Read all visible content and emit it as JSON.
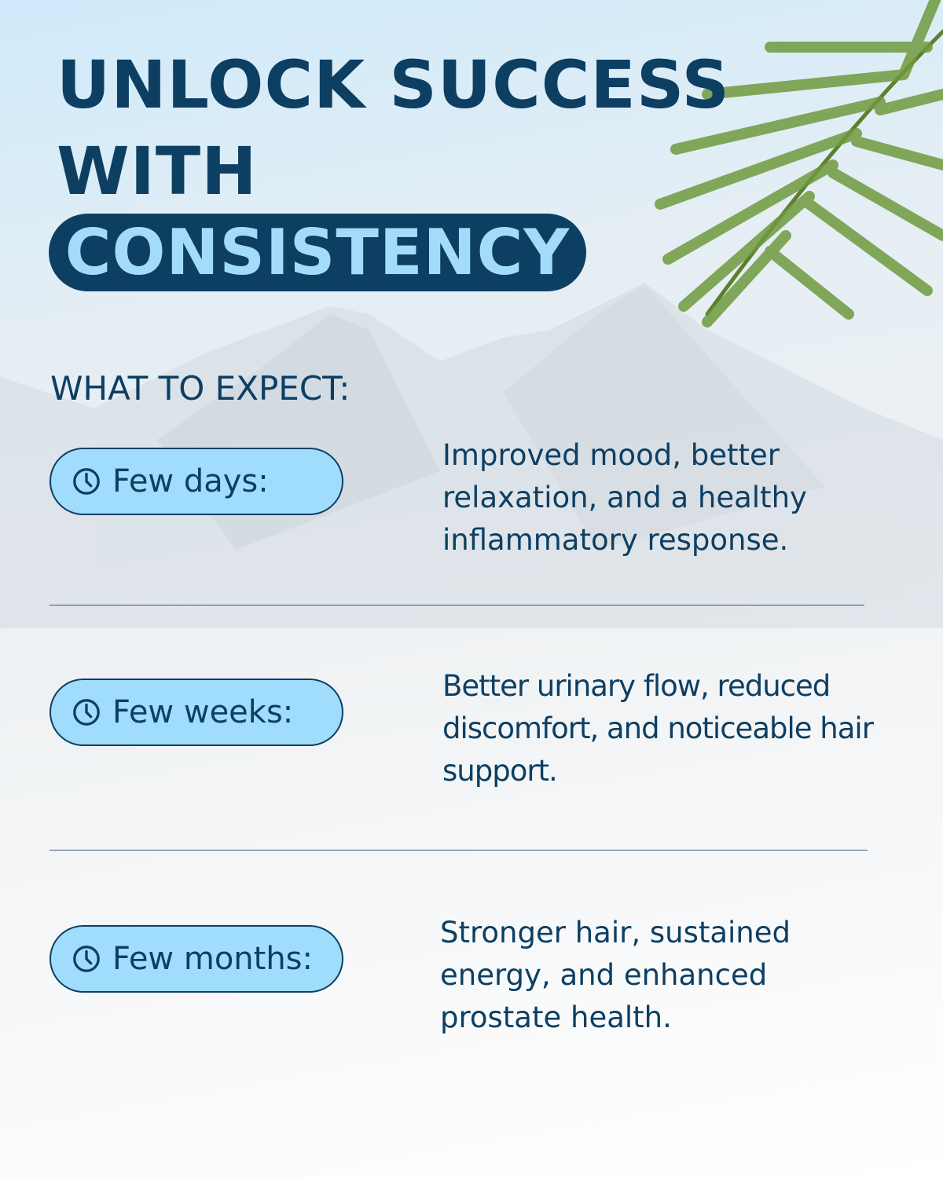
{
  "headline": {
    "line1": "UNLOCK SUCCESS",
    "line2": "WITH",
    "highlight": "CONSISTENCY"
  },
  "subheading": "WHAT TO EXPECT:",
  "timeline": [
    {
      "label": "Few days:",
      "icon": "clock-icon",
      "description": "Improved mood, better relaxation, and a healthy inflammatory response."
    },
    {
      "label": "Few weeks:",
      "icon": "clock-icon",
      "description": "Better urinary flow, reduced discomfort, and noticeable hair support."
    },
    {
      "label": "Few months:",
      "icon": "clock-icon",
      "description": "Stronger hair, sustained energy, and enhanced prostate health."
    }
  ],
  "colors": {
    "navy": "#0d3f63",
    "pill": "#a0dcfc",
    "highlight_text": "#a3dcfb",
    "leaf": "#6f9a3e"
  }
}
